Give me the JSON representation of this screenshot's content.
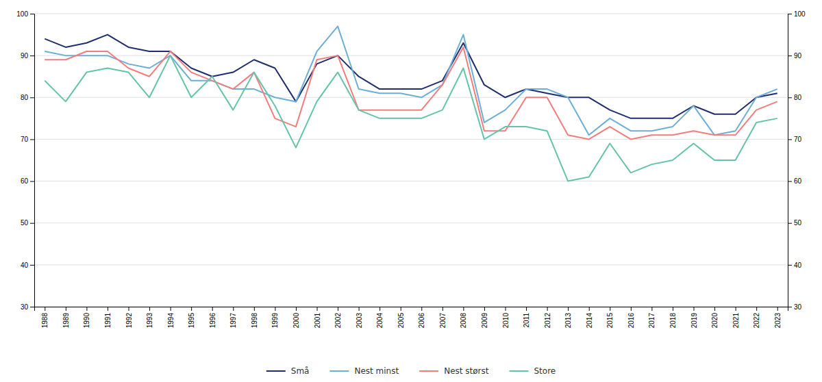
{
  "chart_data": {
    "type": "line",
    "x": [
      1988,
      1989,
      1990,
      1991,
      1992,
      1993,
      1994,
      1995,
      1996,
      1997,
      1998,
      1999,
      2000,
      2001,
      2002,
      2003,
      2004,
      2005,
      2006,
      2007,
      2008,
      2009,
      2010,
      2011,
      2012,
      2013,
      2014,
      2015,
      2016,
      2017,
      2018,
      2019,
      2020,
      2021,
      2022,
      2023
    ],
    "series": [
      {
        "name": "Små",
        "color": "#1f2d6e",
        "values": [
          94,
          92,
          93,
          95,
          92,
          91,
          91,
          87,
          85,
          86,
          89,
          87,
          79,
          88,
          90,
          85,
          82,
          82,
          82,
          84,
          93,
          83,
          80,
          82,
          81,
          80,
          80,
          77,
          75,
          75,
          75,
          78,
          76,
          76,
          80,
          81
        ]
      },
      {
        "name": "Nest minst",
        "color": "#6baed6",
        "values": [
          91,
          90,
          90,
          90,
          88,
          87,
          90,
          84,
          84,
          82,
          82,
          80,
          79,
          91,
          97,
          82,
          81,
          81,
          80,
          83,
          95,
          74,
          77,
          82,
          82,
          80,
          71,
          75,
          72,
          72,
          73,
          78,
          71,
          72,
          80,
          82
        ]
      },
      {
        "name": "Nest størst",
        "color": "#f47c7c",
        "values": [
          89,
          89,
          91,
          91,
          87,
          85,
          91,
          86,
          84,
          82,
          86,
          75,
          73,
          89,
          90,
          77,
          77,
          77,
          77,
          83,
          92,
          72,
          72,
          80,
          80,
          71,
          70,
          73,
          70,
          71,
          71,
          72,
          71,
          71,
          77,
          79
        ]
      },
      {
        "name": "Store",
        "color": "#63c4a8",
        "values": [
          84,
          79,
          86,
          87,
          86,
          80,
          90,
          80,
          85,
          77,
          86,
          78,
          68,
          79,
          86,
          77,
          75,
          75,
          75,
          77,
          87,
          70,
          73,
          73,
          72,
          60,
          61,
          69,
          62,
          64,
          65,
          69,
          65,
          65,
          74,
          75
        ]
      }
    ],
    "xlim": [
      1987.5,
      2023.5
    ],
    "xticks": [
      1988,
      1989,
      1990,
      1991,
      1992,
      1993,
      1994,
      1995,
      1996,
      1997,
      1998,
      1999,
      2000,
      2001,
      2002,
      2003,
      2004,
      2005,
      2006,
      2007,
      2008,
      2009,
      2010,
      2011,
      2012,
      2013,
      2014,
      2015,
      2016,
      2017,
      2018,
      2019,
      2020,
      2021,
      2022,
      2023
    ],
    "ylim": [
      30,
      100
    ],
    "yticks": [
      30,
      40,
      50,
      60,
      70,
      80,
      90,
      100
    ],
    "y2lim": [
      30,
      100
    ],
    "y2ticks": [
      30,
      40,
      50,
      60,
      70,
      80,
      90,
      100
    ],
    "grid": true,
    "legend": "bottom"
  }
}
